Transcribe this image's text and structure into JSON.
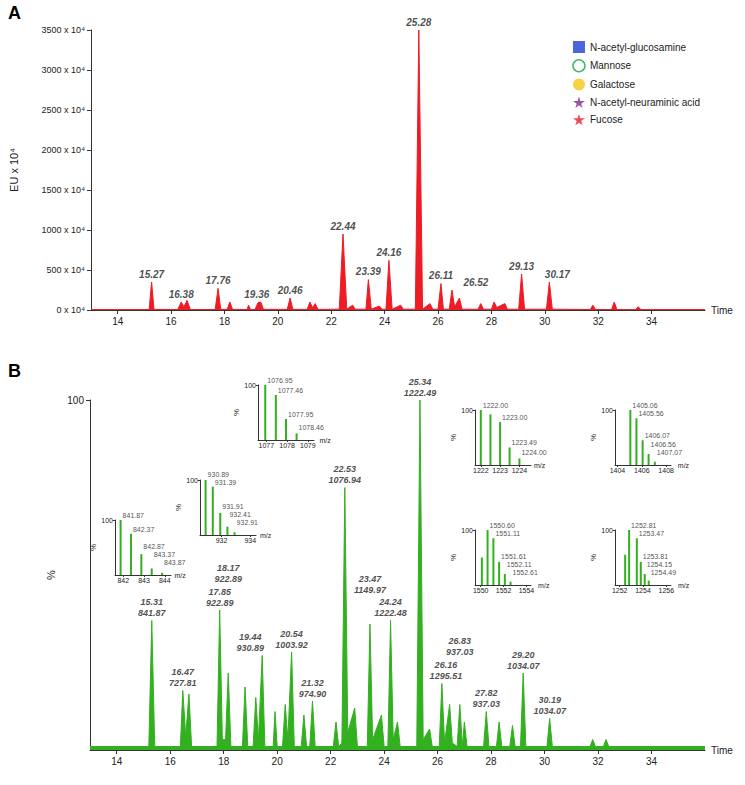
{
  "chart_data": [
    {
      "type": "area",
      "panel": "A",
      "x_label": "Time",
      "y_label": "EU x 10⁴",
      "xlim": [
        13,
        36
      ],
      "xticks": [
        14,
        16,
        18,
        20,
        22,
        24,
        26,
        28,
        30,
        32,
        34
      ],
      "ylim": [
        0,
        3500
      ],
      "yticks": [
        {
          "value": 0,
          "label": "0 x 10⁴"
        },
        {
          "value": 500,
          "label": "500 x 10⁴"
        },
        {
          "value": 1000,
          "label": "1000 x 10⁴"
        },
        {
          "value": 1500,
          "label": "1500 x 10⁴"
        },
        {
          "value": 2000,
          "label": "2000 x 10⁴"
        },
        {
          "value": 2500,
          "label": "2500 x 10⁴"
        },
        {
          "value": 3000,
          "label": "3000 x 10⁴"
        },
        {
          "value": 3500,
          "label": "3500 x 10⁴"
        }
      ],
      "color": "#ee1c25",
      "legend": "upper right",
      "legend_items": [
        {
          "name": "N-acetyl-glucosamine",
          "color": "#1f3fd0",
          "marker": "square"
        },
        {
          "name": "Mannose",
          "color": "#10a84a",
          "marker": "circle_open"
        },
        {
          "name": "Galactose",
          "color": "#f5c518",
          "marker": "circle"
        },
        {
          "name": "N-acetyl-neuraminic acid",
          "color": "#7b2d8e",
          "marker": "star"
        },
        {
          "name": "Fucose",
          "color": "#e8202a",
          "marker": "star"
        }
      ],
      "x": [
        13.0,
        15.0,
        15.18,
        15.27,
        15.36,
        16.25,
        16.38,
        16.48,
        16.6,
        16.72,
        17.65,
        17.76,
        17.86,
        18.1,
        18.2,
        18.3,
        18.85,
        18.9,
        18.98,
        19.15,
        19.25,
        19.36,
        19.46,
        20.35,
        20.46,
        20.56,
        21.1,
        21.2,
        21.3,
        21.4,
        21.5,
        22.3,
        22.44,
        22.58,
        22.8,
        22.9,
        23.3,
        23.39,
        23.5,
        23.8,
        23.9,
        24.05,
        24.16,
        24.28,
        24.6,
        24.7,
        25.15,
        25.28,
        25.42,
        25.7,
        25.8,
        26.0,
        26.11,
        26.2,
        26.42,
        26.52,
        26.62,
        26.8,
        26.9,
        27.5,
        27.6,
        27.7,
        28.0,
        28.1,
        28.2,
        28.5,
        28.6,
        29.02,
        29.13,
        29.24,
        30.06,
        30.17,
        30.28,
        31.7,
        31.8,
        31.9,
        32.5,
        32.6,
        32.7,
        33.4,
        33.5,
        33.6,
        36.0
      ],
      "values": [
        5,
        5,
        8,
        350,
        8,
        6,
        100,
        40,
        120,
        6,
        6,
        270,
        8,
        8,
        100,
        8,
        6,
        60,
        6,
        8,
        90,
        100,
        8,
        8,
        150,
        8,
        8,
        100,
        30,
        80,
        8,
        10,
        950,
        10,
        60,
        10,
        10,
        380,
        10,
        50,
        10,
        10,
        620,
        10,
        60,
        10,
        10,
        3500,
        10,
        80,
        10,
        10,
        330,
        10,
        10,
        250,
        40,
        150,
        10,
        10,
        80,
        10,
        10,
        100,
        30,
        80,
        10,
        10,
        450,
        10,
        10,
        350,
        10,
        6,
        60,
        6,
        6,
        100,
        6,
        5,
        40,
        5,
        5
      ],
      "peak_labels": {
        "x": [
          15.27,
          16.38,
          17.76,
          19.36,
          20.46,
          22.44,
          23.39,
          24.16,
          25.28,
          26.11,
          26.52,
          29.13,
          30.17
        ],
        "values": [
          350,
          100,
          270,
          100,
          150,
          950,
          380,
          620,
          3500,
          330,
          250,
          450,
          350
        ],
        "labels": [
          "15.27",
          "16.38",
          "17.76",
          "19.36",
          "20.46",
          "22.44",
          "23.39",
          "24.16",
          "25.28",
          "26.11",
          "26.52",
          "29.13",
          "30.17"
        ]
      }
    },
    {
      "type": "area",
      "panel": "B",
      "x_label": "Time",
      "y_label": "%",
      "xlim": [
        13,
        36
      ],
      "xticks": [
        14,
        16,
        18,
        20,
        22,
        24,
        26,
        28,
        30,
        32,
        34
      ],
      "ylim": [
        0,
        100
      ],
      "yticks": [
        100
      ],
      "color": "#33b020",
      "x": [
        13,
        15.2,
        15.31,
        15.42,
        16.38,
        16.47,
        16.58,
        16.7,
        16.8,
        17.75,
        17.85,
        17.95,
        18.07,
        18.17,
        18.27,
        18.7,
        18.8,
        18.9,
        19.1,
        19.2,
        19.3,
        19.44,
        19.54,
        19.85,
        19.92,
        20.0,
        20.2,
        20.3,
        20.4,
        20.54,
        20.64,
        20.9,
        21.0,
        21.1,
        21.22,
        21.32,
        21.42,
        22.1,
        22.2,
        22.3,
        22.42,
        22.53,
        22.64,
        22.9,
        23.0,
        23.37,
        23.47,
        23.57,
        23.9,
        24.0,
        24.14,
        24.24,
        24.34,
        24.5,
        24.6,
        25.22,
        25.34,
        25.46,
        25.7,
        25.8,
        26.06,
        26.16,
        26.26,
        26.45,
        26.55,
        26.73,
        26.83,
        26.93,
        27.0,
        27.1,
        27.72,
        27.82,
        27.92,
        28.2,
        28.3,
        28.4,
        28.7,
        28.8,
        28.9,
        29.1,
        29.2,
        29.3,
        30.09,
        30.19,
        30.29,
        31.7,
        31.8,
        31.9,
        32.2,
        32.3,
        32.4,
        36
      ],
      "values": [
        1,
        1,
        37,
        1,
        1,
        17,
        4,
        16,
        1,
        1,
        40,
        3,
        3,
        22,
        1,
        1,
        18,
        1,
        1,
        15,
        3,
        27,
        1,
        1,
        11,
        1,
        1,
        13,
        3,
        28,
        1,
        1,
        10,
        1,
        1,
        14,
        1,
        1,
        8,
        1,
        2,
        75,
        5,
        12,
        1,
        1,
        36,
        3,
        10,
        1,
        1,
        37,
        3,
        8,
        1,
        1,
        100,
        3,
        6,
        1,
        1,
        19,
        2,
        13,
        2,
        1,
        13,
        1,
        8,
        1,
        1,
        11,
        1,
        1,
        8,
        1,
        1,
        7,
        1,
        1,
        22,
        1,
        1,
        9,
        1,
        1,
        3,
        1,
        1,
        3,
        1,
        1
      ],
      "peak_labels": {
        "x": [
          15.31,
          16.47,
          17.85,
          18.17,
          19.44,
          20.54,
          21.32,
          22.53,
          23.47,
          24.24,
          25.34,
          26.16,
          26.83,
          27.82,
          29.2,
          30.19
        ],
        "values": [
          37,
          17,
          40,
          22,
          27,
          28,
          14,
          75,
          36,
          37,
          100,
          19,
          13,
          11,
          22,
          9
        ],
        "labels": [
          "15.31\n841.87",
          "16.47\n727.81",
          "17.85\n922.89",
          "18.17\n922.89",
          "19.44\n930.89",
          "20.54\n1003.92",
          "21.32\n974.90",
          "22.53\n1076.94",
          "23.47\n1149.97",
          "24.24\n1222.48",
          "25.34\n1222.49",
          "26.16\n1295.51",
          "26.83\n937.03",
          "27.82\n937.03",
          "29.20\n1034.07",
          "30.19\n1034.07"
        ]
      },
      "insets": [
        {
          "type": "bar",
          "x_label": "m/z",
          "y_label": "%",
          "xlim": [
            841.6,
            844.3
          ],
          "xticks": [
            842,
            843,
            844
          ],
          "ylim": [
            0,
            100
          ],
          "yticks": [
            100
          ],
          "x": [
            841.87,
            842.37,
            842.87,
            843.37,
            843.87
          ],
          "values": [
            100,
            75,
            38,
            12,
            4
          ],
          "labels": [
            "841.87",
            "842.37",
            "842.87",
            "843.37",
            "843.87"
          ]
        },
        {
          "type": "bar",
          "x_label": "m/z",
          "y_label": "%",
          "xlim": [
            930.5,
            934.4
          ],
          "xticks": [
            932,
            934
          ],
          "ylim": [
            0,
            100
          ],
          "yticks": [
            100
          ],
          "x": [
            930.89,
            931.39,
            931.91,
            932.41,
            932.91
          ],
          "values": [
            100,
            88,
            40,
            15,
            5
          ],
          "labels": [
            "930.89",
            "931.39",
            "931.91",
            "932.41",
            "932.91"
          ]
        },
        {
          "type": "bar",
          "x_label": "m/z",
          "y_label": "%",
          "xlim": [
            1076.6,
            1079.3
          ],
          "xticks": [
            1077,
            1078,
            1079
          ],
          "ylim": [
            0,
            100
          ],
          "yticks": [
            100
          ],
          "x": [
            1076.95,
            1077.46,
            1077.95,
            1078.46
          ],
          "values": [
            100,
            82,
            38,
            12
          ],
          "labels": [
            "1076.95",
            "1077.46",
            "1077.95",
            "1078.46"
          ]
        },
        {
          "type": "bar",
          "x_label": "m/z",
          "y_label": "%",
          "xlim": [
            1221.7,
            1224.6
          ],
          "xticks": [
            1222,
            1223,
            1224
          ],
          "ylim": [
            0,
            100
          ],
          "yticks": [
            100
          ],
          "x": [
            1222.0,
            1222.5,
            1223.0,
            1223.49,
            1224.0
          ],
          "values": [
            100,
            92,
            78,
            32,
            12
          ],
          "labels": [
            "1222.00",
            null,
            "1223.00",
            "1223.49",
            "1224.00"
          ]
        },
        {
          "type": "bar",
          "x_label": "m/z",
          "y_label": "%",
          "xlim": [
            1403.8,
            1408.4
          ],
          "xticks": [
            1404,
            1406,
            1408
          ],
          "ylim": [
            0,
            100
          ],
          "yticks": [
            100
          ],
          "x": [
            1405.06,
            1405.56,
            1406.07,
            1406.56,
            1407.07
          ],
          "values": [
            100,
            85,
            45,
            20,
            6
          ],
          "labels": [
            "1405.06",
            "1405.56",
            "1406.07",
            "1406.56",
            "1407.07"
          ]
        },
        {
          "type": "bar",
          "x_label": "m/z",
          "y_label": "%",
          "xlim": [
            1549.5,
            1554.4
          ],
          "xticks": [
            1550,
            1552,
            1554
          ],
          "ylim": [
            0,
            100
          ],
          "yticks": [
            100
          ],
          "x": [
            1550.1,
            1550.6,
            1551.11,
            1551.61,
            1552.11,
            1552.61
          ],
          "values": [
            50,
            100,
            85,
            42,
            20,
            6
          ],
          "labels": [
            null,
            "1550.60",
            "1551.11",
            "1551.61",
            "1552.11",
            "1552.61"
          ]
        },
        {
          "type": "bar",
          "x_label": "m/z",
          "y_label": "%",
          "xlim": [
            1251.6,
            1256.4
          ],
          "xticks": [
            1252,
            1254,
            1256
          ],
          "ylim": [
            0,
            100
          ],
          "yticks": [
            100
          ],
          "x": [
            1252.47,
            1252.81,
            1253.47,
            1253.81,
            1254.15,
            1254.49
          ],
          "values": [
            55,
            100,
            85,
            42,
            20,
            8
          ],
          "labels": [
            null,
            "1252.81",
            "1253.47",
            "1253.81",
            "1254.15",
            "1254.49"
          ]
        }
      ]
    }
  ]
}
